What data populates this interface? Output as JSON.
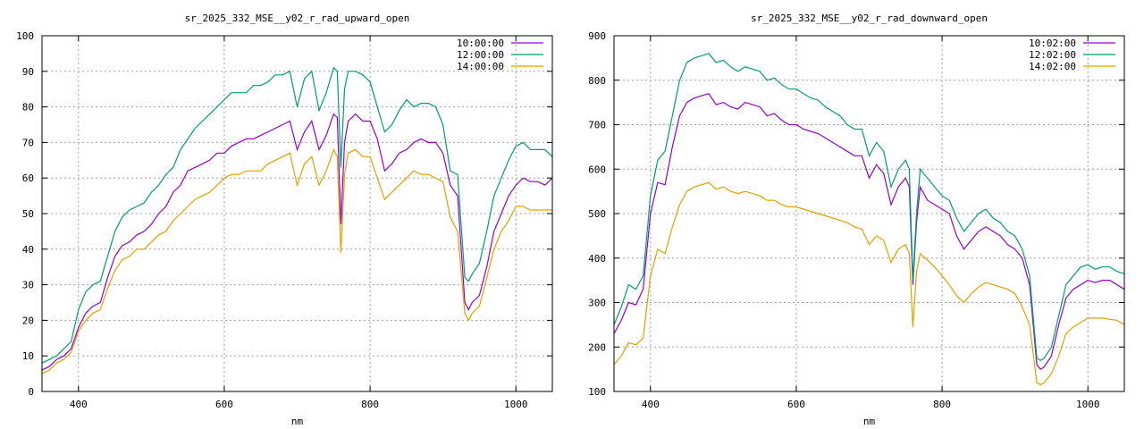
{
  "chart_data": [
    {
      "type": "line",
      "title": "sr_2025_332_MSE__y02_r_rad_upward_open",
      "xlabel": "nm",
      "ylabel": "",
      "xlim": [
        350,
        1050
      ],
      "ylim": [
        0,
        100
      ],
      "xticks": [
        400,
        600,
        800,
        1000
      ],
      "yticks": [
        0,
        10,
        20,
        30,
        40,
        50,
        60,
        70,
        80,
        90,
        100
      ],
      "grid": true,
      "legend_position": "top-right",
      "x": [
        350,
        360,
        370,
        380,
        390,
        400,
        410,
        420,
        430,
        440,
        450,
        460,
        470,
        480,
        490,
        500,
        510,
        520,
        530,
        540,
        550,
        560,
        570,
        580,
        590,
        600,
        610,
        620,
        630,
        640,
        650,
        660,
        670,
        680,
        690,
        700,
        710,
        720,
        730,
        740,
        750,
        755,
        760,
        765,
        770,
        780,
        790,
        800,
        810,
        820,
        830,
        840,
        850,
        860,
        870,
        880,
        890,
        900,
        910,
        920,
        930,
        935,
        940,
        950,
        960,
        970,
        980,
        990,
        1000,
        1010,
        1020,
        1030,
        1040,
        1050
      ],
      "series": [
        {
          "name": "10:00:00",
          "color": "#9400d3",
          "values": [
            6,
            7,
            9,
            10,
            12,
            18,
            22,
            24,
            25,
            32,
            38,
            41,
            42,
            44,
            45,
            47,
            50,
            52,
            56,
            58,
            62,
            63,
            64,
            65,
            67,
            67,
            69,
            70,
            71,
            71,
            72,
            73,
            74,
            75,
            76,
            68,
            73,
            76,
            68,
            72,
            78,
            77,
            47,
            70,
            76,
            78,
            76,
            76,
            71,
            62,
            64,
            67,
            68,
            70,
            71,
            70,
            70,
            67,
            58,
            55,
            25,
            23,
            25,
            27,
            35,
            45,
            50,
            55,
            58,
            60,
            59,
            59,
            58,
            60
          ]
        },
        {
          "name": "12:00:00",
          "color": "#009e73",
          "values": [
            8,
            9,
            10,
            12,
            14,
            23,
            28,
            30,
            31,
            38,
            45,
            49,
            51,
            52,
            53,
            56,
            58,
            61,
            63,
            68,
            71,
            74,
            76,
            78,
            80,
            82,
            84,
            84,
            84,
            86,
            86,
            87,
            89,
            89,
            90,
            80,
            88,
            90,
            79,
            84,
            91,
            90,
            63,
            85,
            90,
            90,
            89,
            87,
            80,
            73,
            75,
            79,
            82,
            80,
            81,
            81,
            80,
            75,
            62,
            61,
            32,
            31,
            33,
            36,
            45,
            55,
            60,
            65,
            69,
            70,
            68,
            68,
            68,
            66
          ]
        },
        {
          "name": "14:00:00",
          "color": "#e69f00",
          "values": [
            5,
            6,
            8,
            9,
            11,
            17,
            20,
            22,
            23,
            29,
            34,
            37,
            38,
            40,
            40,
            42,
            44,
            45,
            48,
            50,
            52,
            54,
            55,
            56,
            58,
            60,
            61,
            61,
            62,
            62,
            62,
            64,
            65,
            66,
            67,
            58,
            64,
            66,
            58,
            62,
            68,
            66,
            39,
            61,
            67,
            68,
            66,
            66,
            60,
            54,
            56,
            58,
            60,
            62,
            61,
            61,
            60,
            59,
            49,
            45,
            22,
            20,
            22,
            24,
            32,
            40,
            45,
            48,
            52,
            52,
            51,
            51,
            51,
            51
          ]
        }
      ]
    },
    {
      "type": "line",
      "title": "sr_2025_332_MSE__y02_r_rad_downward_open",
      "xlabel": "nm",
      "ylabel": "",
      "xlim": [
        350,
        1050
      ],
      "ylim": [
        100,
        900
      ],
      "xticks": [
        400,
        600,
        800,
        1000
      ],
      "yticks": [
        100,
        200,
        300,
        400,
        500,
        600,
        700,
        800,
        900
      ],
      "grid": true,
      "legend_position": "top-right",
      "x": [
        350,
        360,
        370,
        380,
        390,
        400,
        410,
        420,
        430,
        440,
        450,
        460,
        470,
        480,
        490,
        500,
        510,
        520,
        530,
        540,
        550,
        560,
        570,
        580,
        590,
        600,
        610,
        620,
        630,
        640,
        650,
        660,
        670,
        680,
        690,
        700,
        710,
        720,
        730,
        740,
        750,
        755,
        760,
        765,
        770,
        780,
        790,
        800,
        810,
        820,
        830,
        840,
        850,
        860,
        870,
        880,
        890,
        900,
        910,
        920,
        930,
        935,
        940,
        950,
        960,
        970,
        980,
        990,
        1000,
        1010,
        1020,
        1030,
        1040,
        1050
      ],
      "series": [
        {
          "name": "10:02:00",
          "color": "#9400d3",
          "values": [
            230,
            260,
            300,
            295,
            330,
            500,
            570,
            565,
            650,
            720,
            750,
            760,
            765,
            770,
            745,
            750,
            740,
            735,
            750,
            745,
            740,
            720,
            725,
            710,
            700,
            700,
            690,
            685,
            680,
            670,
            660,
            650,
            640,
            630,
            630,
            580,
            610,
            590,
            520,
            560,
            580,
            560,
            340,
            480,
            560,
            530,
            520,
            510,
            500,
            450,
            420,
            440,
            460,
            470,
            460,
            450,
            430,
            420,
            400,
            340,
            160,
            150,
            155,
            180,
            250,
            310,
            330,
            340,
            350,
            345,
            350,
            350,
            340,
            330
          ]
        },
        {
          "name": "12:02:00",
          "color": "#009e73",
          "values": [
            250,
            290,
            340,
            330,
            360,
            540,
            620,
            640,
            720,
            800,
            840,
            850,
            855,
            860,
            840,
            845,
            830,
            820,
            830,
            825,
            820,
            800,
            805,
            790,
            780,
            780,
            770,
            760,
            755,
            740,
            730,
            720,
            700,
            690,
            690,
            630,
            660,
            640,
            560,
            600,
            620,
            600,
            350,
            500,
            600,
            580,
            560,
            540,
            530,
            490,
            460,
            480,
            500,
            510,
            490,
            480,
            460,
            450,
            420,
            360,
            175,
            170,
            175,
            200,
            270,
            340,
            360,
            380,
            385,
            375,
            380,
            380,
            370,
            365
          ]
        },
        {
          "name": "14:02:00",
          "color": "#e69f00",
          "values": [
            160,
            180,
            210,
            205,
            220,
            360,
            420,
            410,
            470,
            520,
            550,
            560,
            565,
            570,
            555,
            560,
            550,
            545,
            550,
            545,
            540,
            530,
            530,
            520,
            515,
            515,
            510,
            505,
            500,
            495,
            490,
            485,
            480,
            470,
            465,
            430,
            450,
            440,
            390,
            420,
            430,
            410,
            245,
            370,
            410,
            395,
            380,
            360,
            340,
            315,
            300,
            320,
            335,
            345,
            340,
            335,
            330,
            320,
            290,
            250,
            120,
            115,
            120,
            140,
            180,
            230,
            245,
            255,
            265,
            265,
            265,
            262,
            260,
            250
          ]
        }
      ]
    }
  ]
}
